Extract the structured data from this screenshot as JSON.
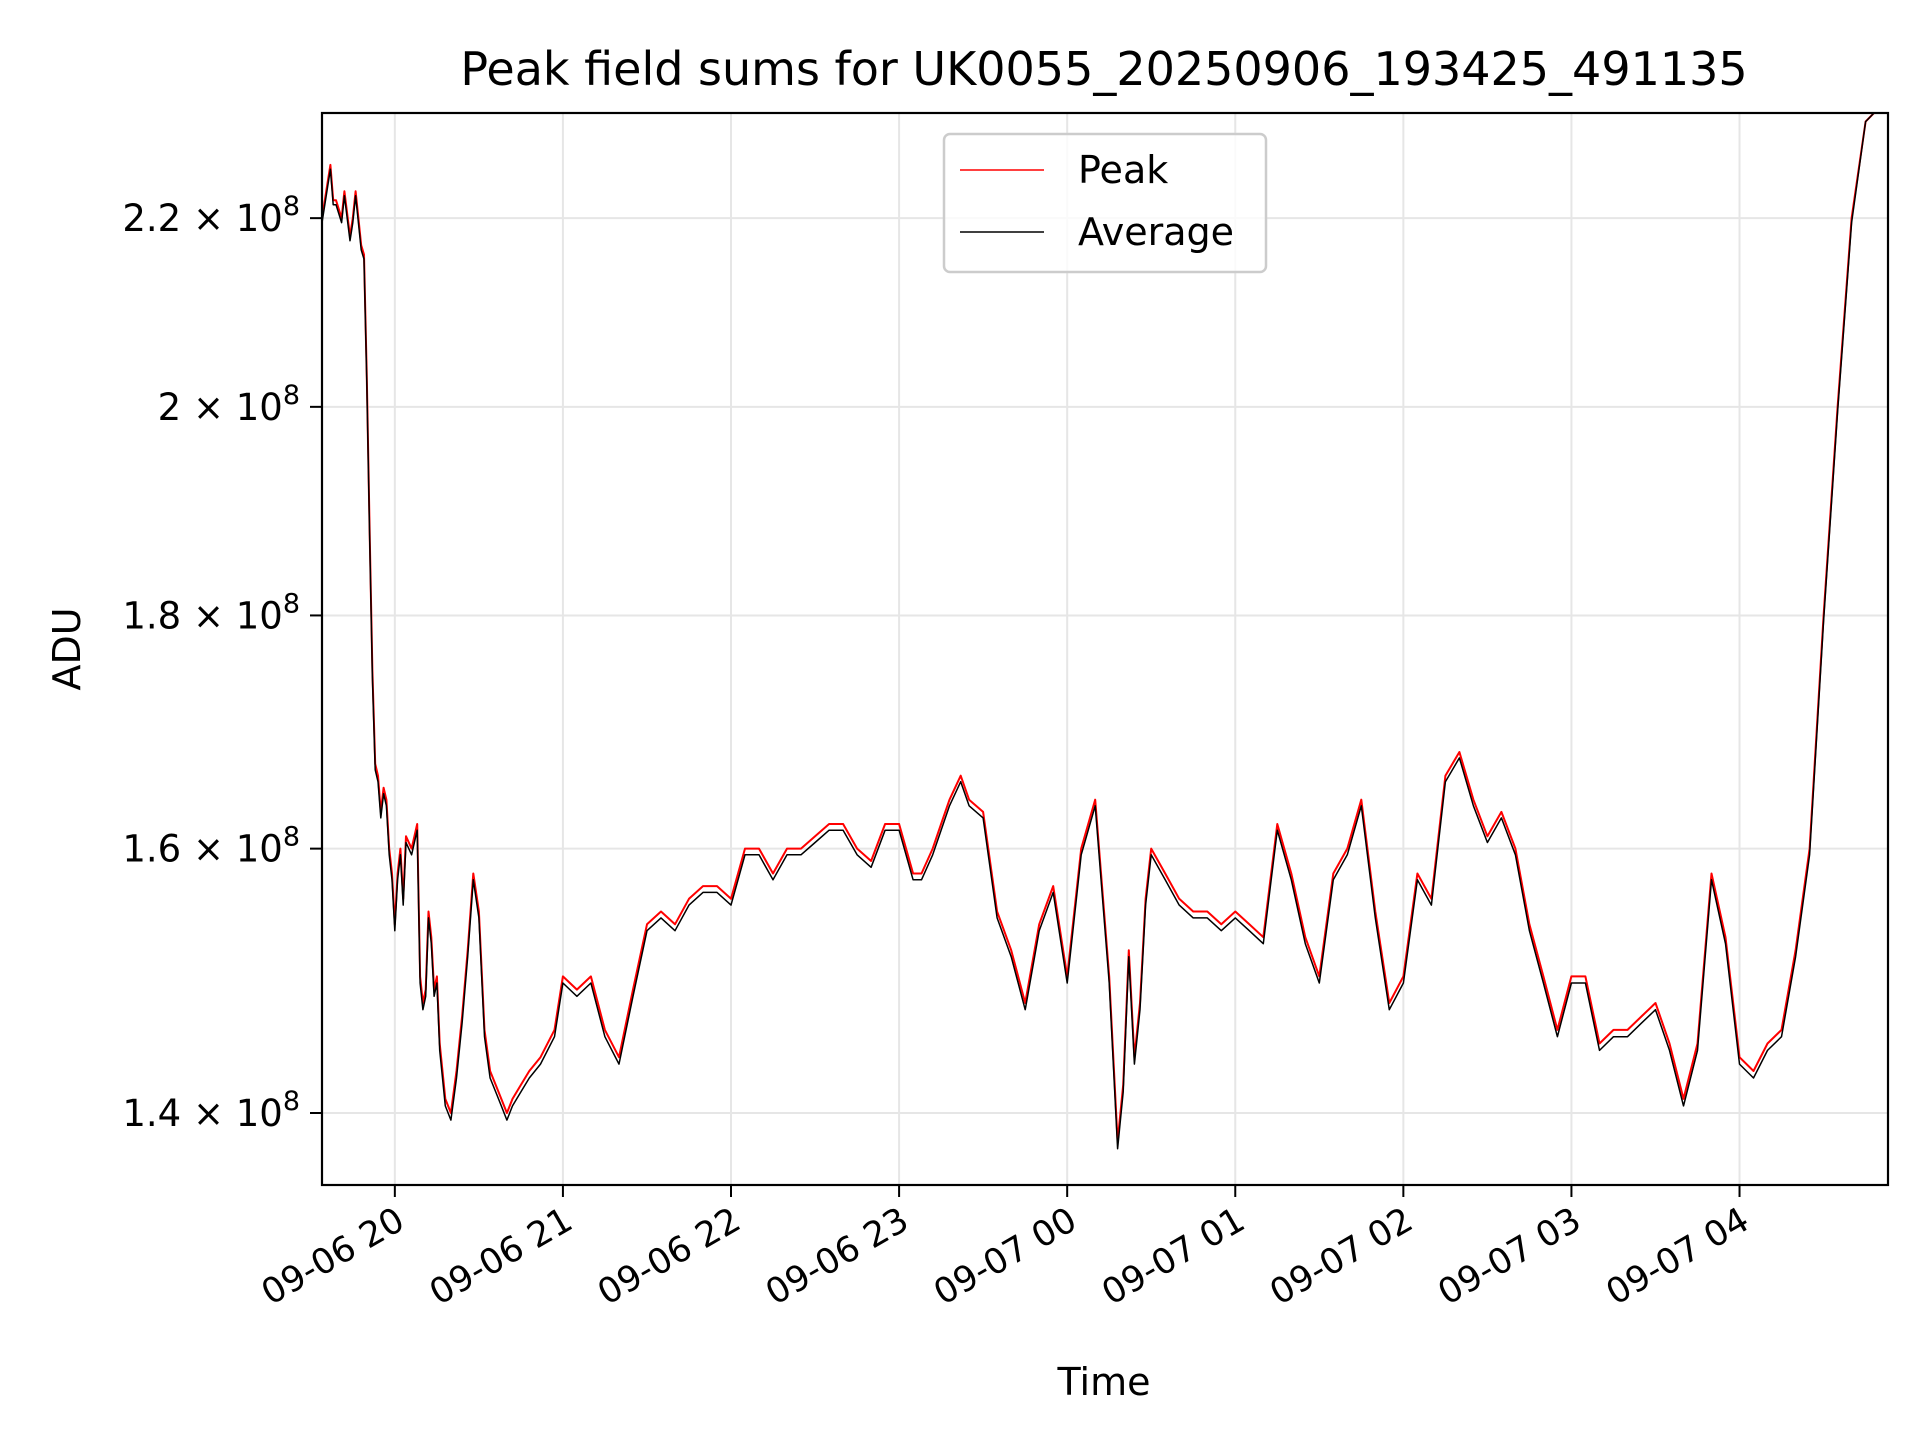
{
  "chart_data": {
    "type": "line",
    "title": "Peak field sums for UK0055_20250906_193425_491135",
    "xlabel": "Time",
    "ylabel": "ADU",
    "yscale": "log",
    "grid": true,
    "legend_position": "upper center",
    "xlim": [
      "2025-09-06 19:34",
      "2025-09-07 04:53"
    ],
    "ylim": [
      135000000,
      232000000
    ],
    "x_ticks": [
      {
        "time": "2025-09-06 20:00",
        "label": "09-06 20"
      },
      {
        "time": "2025-09-06 21:00",
        "label": "09-06 21"
      },
      {
        "time": "2025-09-06 22:00",
        "label": "09-06 22"
      },
      {
        "time": "2025-09-06 23:00",
        "label": "09-06 23"
      },
      {
        "time": "2025-09-07 00:00",
        "label": "09-07 00"
      },
      {
        "time": "2025-09-07 01:00",
        "label": "09-07 01"
      },
      {
        "time": "2025-09-07 02:00",
        "label": "09-07 02"
      },
      {
        "time": "2025-09-07 03:00",
        "label": "09-07 03"
      },
      {
        "time": "2025-09-07 04:00",
        "label": "09-07 04"
      }
    ],
    "y_ticks": [
      {
        "value": 140000000,
        "mantissa": "1.4"
      },
      {
        "value": 160000000,
        "mantissa": "1.6"
      },
      {
        "value": 180000000,
        "mantissa": "1.8"
      },
      {
        "value": 200000000,
        "mantissa": "2"
      },
      {
        "value": 220000000,
        "mantissa": "2.2"
      }
    ],
    "y_tick_times": "×",
    "y_tick_base": "10",
    "y_tick_exponent": "8",
    "time_points": [
      "2025-09-06 19:34",
      "2025-09-06 19:36",
      "2025-09-06 19:37",
      "2025-09-06 19:38",
      "2025-09-06 19:39",
      "2025-09-06 19:40",
      "2025-09-06 19:41",
      "2025-09-06 19:42",
      "2025-09-06 19:44",
      "2025-09-06 19:45",
      "2025-09-06 19:46",
      "2025-09-06 19:47",
      "2025-09-06 19:48",
      "2025-09-06 19:49",
      "2025-09-06 19:50",
      "2025-09-06 19:51",
      "2025-09-06 19:52",
      "2025-09-06 19:53",
      "2025-09-06 19:54",
      "2025-09-06 19:55",
      "2025-09-06 19:56",
      "2025-09-06 19:57",
      "2025-09-06 19:58",
      "2025-09-06 19:59",
      "2025-09-06 20:00",
      "2025-09-06 20:01",
      "2025-09-06 20:02",
      "2025-09-06 20:03",
      "2025-09-06 20:04",
      "2025-09-06 20:06",
      "2025-09-06 20:07",
      "2025-09-06 20:08",
      "2025-09-06 20:09",
      "2025-09-06 20:10",
      "2025-09-06 20:11",
      "2025-09-06 20:12",
      "2025-09-06 20:13",
      "2025-09-06 20:14",
      "2025-09-06 20:15",
      "2025-09-06 20:16",
      "2025-09-06 20:18",
      "2025-09-06 20:20",
      "2025-09-06 20:22",
      "2025-09-06 20:24",
      "2025-09-06 20:26",
      "2025-09-06 20:28",
      "2025-09-06 20:30",
      "2025-09-06 20:32",
      "2025-09-06 20:34",
      "2025-09-06 20:36",
      "2025-09-06 20:38",
      "2025-09-06 20:40",
      "2025-09-06 20:42",
      "2025-09-06 20:45",
      "2025-09-06 20:48",
      "2025-09-06 20:52",
      "2025-09-06 20:57",
      "2025-09-06 21:00",
      "2025-09-06 21:05",
      "2025-09-06 21:10",
      "2025-09-06 21:15",
      "2025-09-06 21:20",
      "2025-09-06 21:25",
      "2025-09-06 21:30",
      "2025-09-06 21:35",
      "2025-09-06 21:40",
      "2025-09-06 21:45",
      "2025-09-06 21:50",
      "2025-09-06 21:55",
      "2025-09-06 22:00",
      "2025-09-06 22:05",
      "2025-09-06 22:10",
      "2025-09-06 22:15",
      "2025-09-06 22:20",
      "2025-09-06 22:25",
      "2025-09-06 22:30",
      "2025-09-06 22:35",
      "2025-09-06 22:40",
      "2025-09-06 22:45",
      "2025-09-06 22:50",
      "2025-09-06 22:55",
      "2025-09-06 23:00",
      "2025-09-06 23:05",
      "2025-09-06 23:08",
      "2025-09-06 23:12",
      "2025-09-06 23:15",
      "2025-09-06 23:18",
      "2025-09-06 23:22",
      "2025-09-06 23:25",
      "2025-09-06 23:30",
      "2025-09-06 23:35",
      "2025-09-06 23:40",
      "2025-09-06 23:45",
      "2025-09-06 23:50",
      "2025-09-06 23:55",
      "2025-09-07 00:00",
      "2025-09-07 00:05",
      "2025-09-07 00:10",
      "2025-09-07 00:15",
      "2025-09-07 00:18",
      "2025-09-07 00:20",
      "2025-09-07 00:22",
      "2025-09-07 00:24",
      "2025-09-07 00:26",
      "2025-09-07 00:28",
      "2025-09-07 00:30",
      "2025-09-07 00:35",
      "2025-09-07 00:40",
      "2025-09-07 00:45",
      "2025-09-07 00:50",
      "2025-09-07 00:55",
      "2025-09-07 01:00",
      "2025-09-07 01:05",
      "2025-09-07 01:10",
      "2025-09-07 01:15",
      "2025-09-07 01:20",
      "2025-09-07 01:25",
      "2025-09-07 01:30",
      "2025-09-07 01:35",
      "2025-09-07 01:40",
      "2025-09-07 01:45",
      "2025-09-07 01:50",
      "2025-09-07 01:55",
      "2025-09-07 02:00",
      "2025-09-07 02:05",
      "2025-09-07 02:10",
      "2025-09-07 02:15",
      "2025-09-07 02:20",
      "2025-09-07 02:25",
      "2025-09-07 02:30",
      "2025-09-07 02:35",
      "2025-09-07 02:40",
      "2025-09-07 02:45",
      "2025-09-07 02:50",
      "2025-09-07 02:55",
      "2025-09-07 03:00",
      "2025-09-07 03:05",
      "2025-09-07 03:10",
      "2025-09-07 03:15",
      "2025-09-07 03:20",
      "2025-09-07 03:25",
      "2025-09-07 03:30",
      "2025-09-07 03:35",
      "2025-09-07 03:40",
      "2025-09-07 03:45",
      "2025-09-07 03:50",
      "2025-09-07 03:55",
      "2025-09-07 04:00",
      "2025-09-07 04:05",
      "2025-09-07 04:10",
      "2025-09-07 04:15",
      "2025-09-07 04:20",
      "2025-09-07 04:25",
      "2025-09-07 04:30",
      "2025-09-07 04:35",
      "2025-09-07 04:40",
      "2025-09-07 04:45",
      "2025-09-07 04:48",
      "2025-09-07 04:50",
      "2025-09-07 04:53"
    ],
    "series": [
      {
        "name": "Peak",
        "color": "#ff0000",
        "values": [
          220,
          224,
          226,
          222,
          222,
          221,
          220,
          223,
          218,
          220,
          223,
          220,
          217,
          216,
          203,
          188,
          175,
          167,
          166,
          163,
          165,
          164,
          160,
          158,
          154,
          158,
          160,
          156,
          161,
          160,
          161,
          162,
          150,
          148,
          149,
          155,
          153,
          149,
          150,
          145,
          141,
          140,
          143,
          147,
          152,
          158,
          155,
          146,
          143,
          142,
          141,
          140,
          141,
          142,
          143,
          144,
          146,
          150,
          149,
          150,
          146,
          144,
          149,
          154,
          155,
          154,
          156,
          157,
          157,
          156,
          160,
          160,
          158,
          160,
          160,
          161,
          162,
          162,
          160,
          159,
          162,
          162,
          158,
          158,
          160,
          162,
          164,
          166,
          164,
          163,
          155,
          152,
          148,
          154,
          157,
          150,
          160,
          164,
          150,
          138,
          142,
          152,
          144,
          148,
          156,
          160,
          158,
          156,
          155,
          155,
          154,
          155,
          154,
          153,
          162,
          158,
          153,
          150,
          158,
          160,
          164,
          155,
          148,
          150,
          158,
          156,
          166,
          168,
          164,
          161,
          163,
          160,
          154,
          150,
          146,
          150,
          150,
          145,
          146,
          146,
          147,
          148,
          145,
          141,
          145,
          158,
          153,
          144,
          143,
          145,
          146,
          152,
          160,
          180,
          200,
          220,
          231,
          232
        ]
      },
      {
        "name": "Average",
        "color": "#000000",
        "values": [
          219.5,
          223.5,
          225.5,
          221.5,
          221.5,
          220.5,
          219.5,
          222.5,
          217.5,
          219.5,
          222.5,
          219.5,
          216.5,
          215.5,
          202.5,
          187.5,
          174.5,
          166.5,
          165.5,
          162.5,
          164.5,
          163.5,
          159.5,
          157.5,
          153.5,
          157.5,
          159.5,
          155.5,
          160.5,
          159.5,
          160.5,
          161.5,
          149.5,
          147.5,
          148.5,
          154.5,
          152.5,
          148.5,
          149.5,
          144.5,
          140.5,
          139.5,
          142.5,
          146.5,
          151.5,
          157.5,
          154.5,
          145.5,
          142.5,
          141.5,
          140.5,
          139.5,
          140.5,
          141.5,
          142.5,
          143.5,
          145.5,
          149.5,
          148.5,
          149.5,
          145.5,
          143.5,
          148.5,
          153.5,
          154.5,
          153.5,
          155.5,
          156.5,
          156.5,
          155.5,
          159.5,
          159.5,
          157.5,
          159.5,
          159.5,
          160.5,
          161.5,
          161.5,
          159.5,
          158.5,
          161.5,
          161.5,
          157.5,
          157.5,
          159.5,
          161.5,
          163.5,
          165.5,
          163.5,
          162.5,
          154.5,
          151.5,
          147.5,
          153.5,
          156.5,
          149.5,
          159.5,
          163.5,
          149.5,
          137.5,
          141.5,
          151.5,
          143.5,
          147.5,
          155.5,
          159.5,
          157.5,
          155.5,
          154.5,
          154.5,
          153.5,
          154.5,
          153.5,
          152.5,
          161.5,
          157.5,
          152.5,
          149.5,
          157.5,
          159.5,
          163.5,
          154.5,
          147.5,
          149.5,
          157.5,
          155.5,
          165.5,
          167.5,
          163.5,
          160.5,
          162.5,
          159.5,
          153.5,
          149.5,
          145.5,
          149.5,
          149.5,
          144.5,
          145.5,
          145.5,
          146.5,
          147.5,
          144.5,
          140.5,
          144.5,
          157.5,
          152.5,
          143.5,
          142.5,
          144.5,
          145.5,
          151.5,
          159.5,
          179.5,
          199.5,
          219.5,
          231,
          232
        ]
      }
    ],
    "value_unit_multiplier": 1000000
  }
}
